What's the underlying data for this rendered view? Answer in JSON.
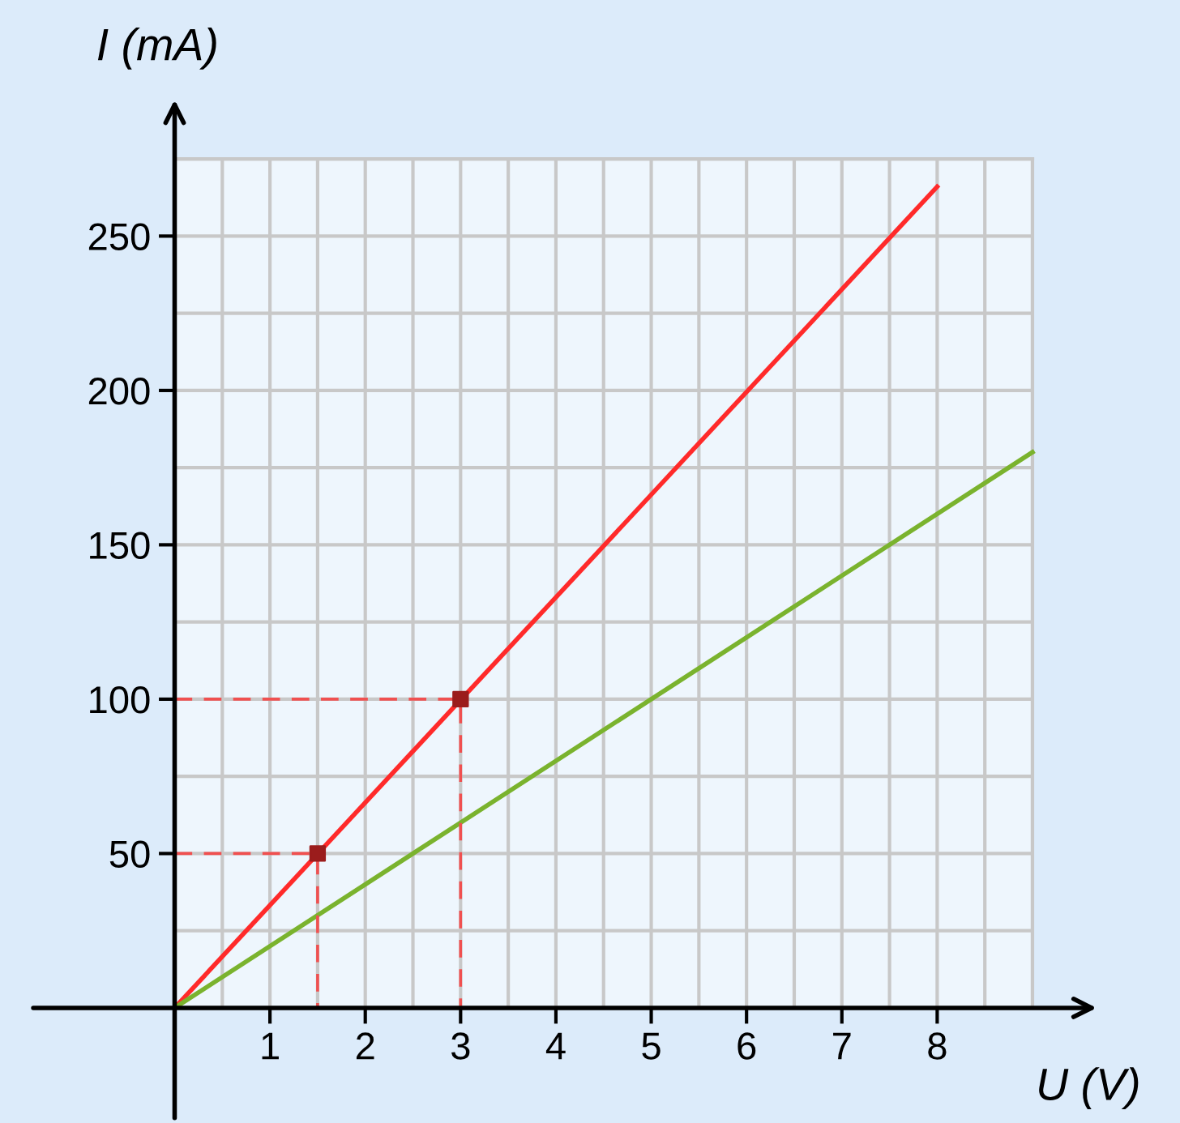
{
  "chart_data": {
    "type": "line",
    "xlabel": "U (V)",
    "ylabel": "I (mA)",
    "xlim": [
      0,
      9
    ],
    "ylim": [
      0,
      275
    ],
    "xticks": [
      1,
      2,
      3,
      4,
      5,
      6,
      7,
      8
    ],
    "yticks": [
      50,
      100,
      150,
      200,
      250
    ],
    "grid": true,
    "legend": false,
    "marker": "none",
    "line_style": "solid",
    "series": [
      {
        "color": "#ff2a2a",
        "x": [
          0,
          8
        ],
        "values": [
          0,
          266
        ]
      },
      {
        "color": "#7ab32e",
        "x": [
          0,
          9
        ],
        "values": [
          0,
          180
        ]
      },
      {
        "color": "#f05050",
        "x": [
          0,
          1.5,
          1.5
        ],
        "values": [
          50,
          50,
          0
        ],
        "line_style": "dashed"
      },
      {
        "color": "#f05050",
        "x": [
          0,
          3,
          3
        ],
        "values": [
          100,
          100,
          0
        ],
        "line_style": "dashed"
      },
      {
        "type": "scatter",
        "color": "#9b1c1c",
        "x": [
          1.5,
          3
        ],
        "values": [
          50,
          100
        ],
        "marker": "square"
      }
    ]
  }
}
